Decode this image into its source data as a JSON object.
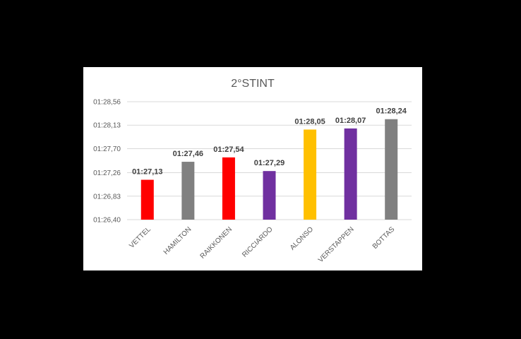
{
  "chart_data": {
    "type": "bar",
    "title": "2°STINT",
    "xlabel": "",
    "ylabel": "",
    "y_tick_labels": [
      "01:26,40",
      "01:26,83",
      "01:27,26",
      "01:27,70",
      "01:28,13",
      "01:28,56"
    ],
    "ylim": [
      86.4,
      88.56
    ],
    "yticks": [
      86.4,
      86.83,
      87.26,
      87.7,
      88.13,
      88.56
    ],
    "grid": true,
    "categories": [
      "VETTEL",
      "HAMILTON",
      "RAIKKONEN",
      "RICCIARDO",
      "ALONSO",
      "VERSTAPPEN",
      "BOTTAS"
    ],
    "values": [
      87.13,
      87.46,
      87.54,
      87.29,
      88.05,
      88.07,
      88.24
    ],
    "data_labels": [
      "01:27,13",
      "01:27,46",
      "01:27,54",
      "01:27,29",
      "01:28,05",
      "01:28,07",
      "01:28,24"
    ],
    "colors": [
      "#ff0000",
      "#808080",
      "#ff0000",
      "#7030a0",
      "#ffc000",
      "#7030a0",
      "#808080"
    ]
  }
}
